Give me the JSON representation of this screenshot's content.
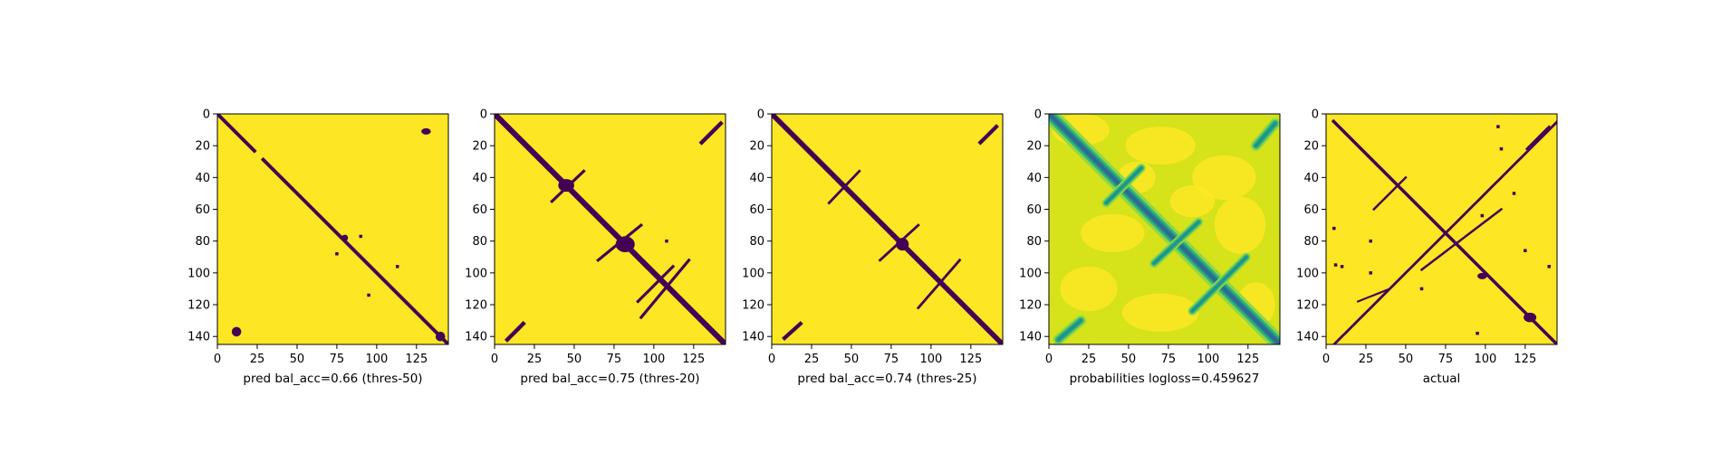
{
  "colors": {
    "background": "#440154",
    "foreground": "#fde725",
    "prob_high": "#fde725",
    "prob_mid1": "#d6e21a",
    "prob_mid2": "#90d743",
    "prob_mid3": "#35b779",
    "prob_mid4": "#21918c",
    "prob_low": "#31688e",
    "prob_min": "#440154"
  },
  "chart_data": [
    {
      "type": "heatmap",
      "variant": "binary",
      "title": "",
      "xlabel": "pred bal_acc=0.66 (thres-50)",
      "ylabel": "",
      "xlim": [
        0,
        145
      ],
      "ylim": [
        145,
        0
      ],
      "xticks": [
        0,
        25,
        50,
        75,
        100,
        125
      ],
      "yticks": [
        0,
        20,
        40,
        60,
        80,
        100,
        120,
        140
      ],
      "features": [
        {
          "kind": "diagonal",
          "x0": 0,
          "y0": 0,
          "x1": 145,
          "y1": 145,
          "width": 2.2,
          "gaps": [
            [
              24,
              28
            ]
          ]
        },
        {
          "kind": "blob",
          "x": 131,
          "y": 11,
          "rx": 3,
          "ry": 2
        },
        {
          "kind": "blob",
          "x": 12,
          "y": 137,
          "rx": 3,
          "ry": 3
        },
        {
          "kind": "blob",
          "x": 140,
          "y": 140,
          "rx": 3,
          "ry": 3
        },
        {
          "kind": "blob",
          "x": 80,
          "y": 78,
          "rx": 2,
          "ry": 2
        },
        {
          "kind": "dot",
          "x": 75,
          "y": 88
        },
        {
          "kind": "dot",
          "x": 90,
          "y": 77
        },
        {
          "kind": "dot",
          "x": 113,
          "y": 96
        },
        {
          "kind": "dot",
          "x": 95,
          "y": 114
        }
      ]
    },
    {
      "type": "heatmap",
      "variant": "binary",
      "title": "",
      "xlabel": "pred bal_acc=0.75 (thres-20)",
      "ylabel": "",
      "xlim": [
        0,
        145
      ],
      "ylim": [
        145,
        0
      ],
      "xticks": [
        0,
        25,
        50,
        75,
        100,
        125
      ],
      "yticks": [
        0,
        20,
        40,
        60,
        80,
        100,
        120,
        140
      ],
      "features": [
        {
          "kind": "diagonal",
          "x0": 0,
          "y0": 0,
          "x1": 145,
          "y1": 145,
          "width": 3.5,
          "gaps": []
        },
        {
          "kind": "stroke",
          "x0": 130,
          "y0": 18,
          "x1": 142,
          "y1": 6,
          "width": 2.5
        },
        {
          "kind": "stroke",
          "x0": 8,
          "y0": 142,
          "x1": 18,
          "y1": 132,
          "width": 2.5
        },
        {
          "kind": "blob",
          "x": 45,
          "y": 45,
          "rx": 5,
          "ry": 4
        },
        {
          "kind": "stroke",
          "x0": 36,
          "y0": 55,
          "x1": 56,
          "y1": 36,
          "width": 1.8
        },
        {
          "kind": "blob",
          "x": 82,
          "y": 82,
          "rx": 6,
          "ry": 5
        },
        {
          "kind": "stroke",
          "x0": 65,
          "y0": 92,
          "x1": 92,
          "y1": 70,
          "width": 1.8
        },
        {
          "kind": "stroke",
          "x0": 92,
          "y0": 128,
          "x1": 122,
          "y1": 92,
          "width": 1.8
        },
        {
          "kind": "stroke",
          "x0": 90,
          "y0": 118,
          "x1": 112,
          "y1": 96,
          "width": 1.8
        },
        {
          "kind": "dot",
          "x": 108,
          "y": 80
        }
      ]
    },
    {
      "type": "heatmap",
      "variant": "binary",
      "title": "",
      "xlabel": "pred bal_acc=0.74 (thres-25)",
      "ylabel": "",
      "xlim": [
        0,
        145
      ],
      "ylim": [
        145,
        0
      ],
      "xticks": [
        0,
        25,
        50,
        75,
        100,
        125
      ],
      "yticks": [
        0,
        20,
        40,
        60,
        80,
        100,
        120,
        140
      ],
      "features": [
        {
          "kind": "diagonal",
          "x0": 0,
          "y0": 0,
          "x1": 145,
          "y1": 145,
          "width": 3.2,
          "gaps": []
        },
        {
          "kind": "stroke",
          "x0": 131,
          "y0": 18,
          "x1": 141,
          "y1": 8,
          "width": 2.4
        },
        {
          "kind": "stroke",
          "x0": 8,
          "y0": 141,
          "x1": 18,
          "y1": 132,
          "width": 2.4
        },
        {
          "kind": "stroke",
          "x0": 36,
          "y0": 56,
          "x1": 55,
          "y1": 36,
          "width": 1.6
        },
        {
          "kind": "blob",
          "x": 82,
          "y": 82,
          "rx": 4,
          "ry": 4
        },
        {
          "kind": "stroke",
          "x0": 68,
          "y0": 92,
          "x1": 92,
          "y1": 70,
          "width": 1.6
        },
        {
          "kind": "stroke",
          "x0": 92,
          "y0": 122,
          "x1": 118,
          "y1": 92,
          "width": 1.6
        }
      ]
    },
    {
      "type": "heatmap",
      "variant": "probability",
      "title": "",
      "xlabel": "probabilities logloss=0.459627",
      "ylabel": "",
      "xlim": [
        0,
        145
      ],
      "ylim": [
        145,
        0
      ],
      "xticks": [
        0,
        25,
        50,
        75,
        100,
        125
      ],
      "yticks": [
        0,
        20,
        40,
        60,
        80,
        100,
        120,
        140
      ],
      "features": [
        {
          "kind": "diagonal",
          "x0": 0,
          "y0": 0,
          "x1": 145,
          "y1": 145,
          "width": 4,
          "gaps": []
        },
        {
          "kind": "stroke",
          "x0": 130,
          "y0": 20,
          "x1": 142,
          "y1": 6,
          "width": 3
        },
        {
          "kind": "stroke",
          "x0": 6,
          "y0": 142,
          "x1": 20,
          "y1": 130,
          "width": 3
        },
        {
          "kind": "stroke",
          "x0": 36,
          "y0": 56,
          "x1": 58,
          "y1": 34,
          "width": 2.5
        },
        {
          "kind": "stroke",
          "x0": 66,
          "y0": 94,
          "x1": 94,
          "y1": 68,
          "width": 2.5
        },
        {
          "kind": "stroke",
          "x0": 90,
          "y0": 124,
          "x1": 124,
          "y1": 90,
          "width": 2.5
        }
      ]
    },
    {
      "type": "heatmap",
      "variant": "binary",
      "title": "",
      "xlabel": "actual",
      "ylabel": "",
      "xlim": [
        0,
        145
      ],
      "ylim": [
        145,
        0
      ],
      "xticks": [
        0,
        25,
        50,
        75,
        100,
        125
      ],
      "yticks": [
        0,
        20,
        40,
        60,
        80,
        100,
        120,
        140
      ],
      "features": [
        {
          "kind": "diagonal",
          "x0": 0,
          "y0": 0,
          "x1": 145,
          "y1": 145,
          "width": 2,
          "gaps": [
            [
              0,
              4
            ]
          ]
        },
        {
          "kind": "stroke",
          "x0": 5,
          "y0": 145,
          "x1": 145,
          "y1": 5,
          "width": 1.6
        },
        {
          "kind": "stroke",
          "x0": 30,
          "y0": 60,
          "x1": 50,
          "y1": 40,
          "width": 1.4
        },
        {
          "kind": "stroke",
          "x0": 60,
          "y0": 98,
          "x1": 110,
          "y1": 60,
          "width": 1.4
        },
        {
          "kind": "stroke",
          "x0": 80,
          "y0": 70,
          "x1": 120,
          "y1": 30,
          "width": 1.2
        },
        {
          "kind": "stroke",
          "x0": 20,
          "y0": 118,
          "x1": 40,
          "y1": 110,
          "width": 1.2
        },
        {
          "kind": "stroke",
          "x0": 126,
          "y0": 22,
          "x1": 140,
          "y1": 8,
          "width": 1.4
        },
        {
          "kind": "blob",
          "x": 128,
          "y": 128,
          "rx": 4,
          "ry": 3
        },
        {
          "kind": "blob",
          "x": 98,
          "y": 102,
          "rx": 3,
          "ry": 2
        },
        {
          "kind": "dot",
          "x": 5,
          "y": 72
        },
        {
          "kind": "dot",
          "x": 28,
          "y": 80
        },
        {
          "kind": "dot",
          "x": 6,
          "y": 95
        },
        {
          "kind": "dot",
          "x": 10,
          "y": 96
        },
        {
          "kind": "dot",
          "x": 28,
          "y": 100
        },
        {
          "kind": "dot",
          "x": 98,
          "y": 64
        },
        {
          "kind": "dot",
          "x": 108,
          "y": 8
        },
        {
          "kind": "dot",
          "x": 110,
          "y": 22
        },
        {
          "kind": "dot",
          "x": 140,
          "y": 96
        },
        {
          "kind": "dot",
          "x": 125,
          "y": 86
        },
        {
          "kind": "dot",
          "x": 118,
          "y": 50
        },
        {
          "kind": "dot",
          "x": 60,
          "y": 110
        },
        {
          "kind": "dot",
          "x": 95,
          "y": 138
        }
      ]
    }
  ]
}
